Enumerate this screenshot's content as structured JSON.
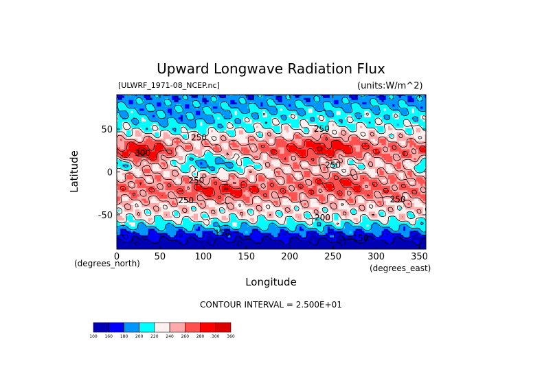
{
  "chart_data": {
    "type": "heatmap",
    "title": "Upward Longwave Radiation Flux",
    "subtitle_left": "[ULWRF_1971-08_NCEP.nc]",
    "subtitle_right": "(units:W/m^2)",
    "xlabel": "Longitude",
    "ylabel": "Latitude",
    "x_unit": "(degrees_north)",
    "y_unit": "(degrees_east)",
    "xlim": [
      0,
      357.5
    ],
    "ylim": [
      -90,
      90
    ],
    "x_ticks": [
      0,
      50,
      100,
      150,
      200,
      250,
      300,
      350
    ],
    "y_ticks": [
      50,
      0,
      -50
    ],
    "contour_interval_text": "CONTOUR INTERVAL = 2.500E+01",
    "contour_levels": [
      150,
      175,
      200,
      225,
      250,
      275,
      300
    ],
    "contour_labels": [
      {
        "text": "300",
        "lon": 30,
        "lat": 22
      },
      {
        "text": "250",
        "lon": 95,
        "lat": 40
      },
      {
        "text": "250",
        "lon": 237,
        "lat": 50
      },
      {
        "text": "250",
        "lon": 250,
        "lat": 8
      },
      {
        "text": "250",
        "lon": 92,
        "lat": -10
      },
      {
        "text": "250",
        "lon": 80,
        "lat": -33
      },
      {
        "text": "250",
        "lon": 325,
        "lat": -32
      },
      {
        "text": "200",
        "lon": 238,
        "lat": -53
      },
      {
        "text": "150",
        "lon": 122,
        "lat": -71
      },
      {
        "text": "150",
        "lon": 282,
        "lat": -77
      }
    ],
    "colorbar": {
      "boundaries": [
        100,
        160,
        180,
        200,
        220,
        240,
        260,
        280,
        300,
        360
      ],
      "labels": [
        "100",
        "160",
        "180",
        "200",
        "220",
        "240",
        "260",
        "280",
        "300",
        "360"
      ],
      "colors": [
        "#0000b4",
        "#0000ff",
        "#0096ff",
        "#00ffff",
        "#fff0f0",
        "#ffaaaa",
        "#ff5050",
        "#ff0000",
        "#dc0000"
      ]
    }
  }
}
